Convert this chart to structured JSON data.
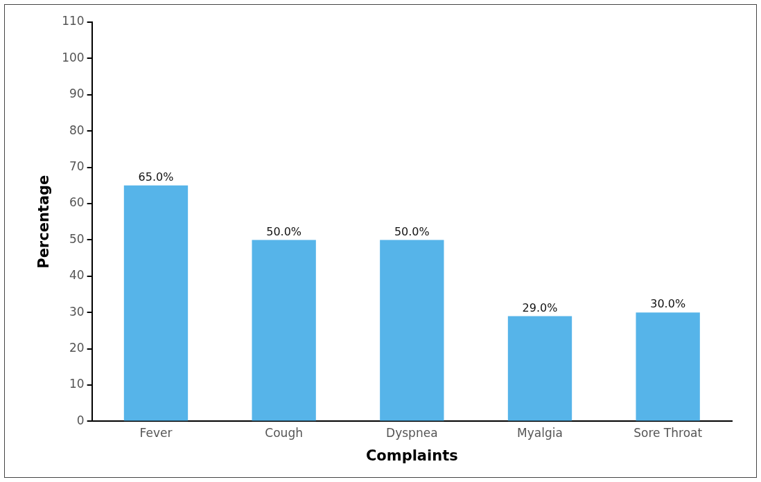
{
  "chart_data": {
    "type": "bar",
    "xlabel": "Complaints",
    "ylabel": "Percentage",
    "categories": [
      "Fever",
      "Cough",
      "Dyspnea",
      "Myalgia",
      "Sore Throat"
    ],
    "values": [
      65,
      50,
      50,
      29,
      30
    ],
    "value_labels": [
      "65.0%",
      "50.0%",
      "50.0%",
      "29.0%",
      "30.0%"
    ],
    "color": "#56b4e9",
    "ylim": [
      0,
      110
    ],
    "yticks": [
      0,
      10,
      20,
      30,
      40,
      50,
      60,
      70,
      80,
      90,
      100,
      110
    ],
    "grid": false,
    "legend": false
  }
}
